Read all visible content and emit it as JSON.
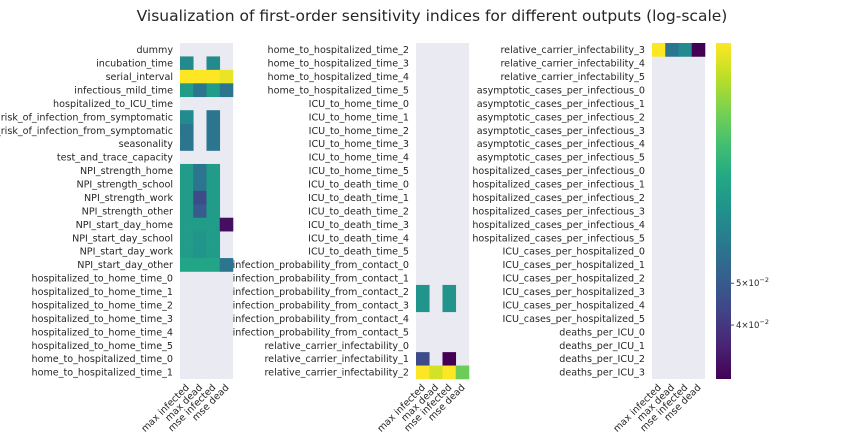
{
  "chart_data": [
    {
      "type": "heatmap",
      "panel": "left",
      "columns": [
        "max infected",
        "max dead",
        "mse infected",
        "mse dead"
      ],
      "rows": [
        "dummy",
        "incubation_time",
        "serial_interval",
        "infectious_mild_time",
        "hospitalized_to_ICU_time",
        "risk_of_infection_from_symptomatic",
        "max_risk_of_infection_from_symptomatic",
        "seasonality",
        "test_and_trace_capacity",
        "NPI_strength_home",
        "NPI_strength_school",
        "NPI_strength_work",
        "NPI_strength_other",
        "NPI_start_day_home",
        "NPI_start_day_school",
        "NPI_start_day_work",
        "NPI_start_day_other",
        "hospitalized_to_home_time_0",
        "hospitalized_to_home_time_1",
        "hospitalized_to_home_time_2",
        "hospitalized_to_home_time_3",
        "hospitalized_to_home_time_4",
        "hospitalized_to_home_time_5",
        "home_to_hospitalized_time_0",
        "home_to_hospitalized_time_1"
      ],
      "values": [
        [
          null,
          null,
          null,
          null
        ],
        [
          0.07,
          null,
          0.07,
          null
        ],
        [
          0.18,
          0.18,
          0.18,
          0.17
        ],
        [
          0.08,
          0.06,
          0.08,
          0.06
        ],
        [
          null,
          null,
          null,
          null
        ],
        [
          0.07,
          null,
          0.06,
          null
        ],
        [
          0.06,
          null,
          0.06,
          null
        ],
        [
          0.06,
          null,
          0.06,
          null
        ],
        [
          null,
          null,
          null,
          null
        ],
        [
          0.08,
          0.06,
          0.08,
          null
        ],
        [
          0.08,
          0.06,
          0.08,
          null
        ],
        [
          0.08,
          0.045,
          0.08,
          null
        ],
        [
          0.08,
          0.05,
          0.08,
          null
        ],
        [
          0.08,
          0.08,
          0.08,
          0.032
        ],
        [
          0.08,
          0.075,
          0.08,
          null
        ],
        [
          0.08,
          0.075,
          0.08,
          null
        ],
        [
          0.085,
          0.085,
          0.085,
          0.06
        ],
        [
          null,
          null,
          null,
          null
        ],
        [
          null,
          null,
          null,
          null
        ],
        [
          null,
          null,
          null,
          null
        ],
        [
          null,
          null,
          null,
          null
        ],
        [
          null,
          null,
          null,
          null
        ],
        [
          null,
          null,
          null,
          null
        ],
        [
          null,
          null,
          null,
          null
        ],
        [
          null,
          null,
          null,
          null
        ]
      ]
    },
    {
      "type": "heatmap",
      "panel": "middle",
      "columns": [
        "max infected",
        "max dead",
        "mse infected",
        "mse dead"
      ],
      "rows": [
        "home_to_hospitalized_time_2",
        "home_to_hospitalized_time_3",
        "home_to_hospitalized_time_4",
        "home_to_hospitalized_time_5",
        "ICU_to_home_time_0",
        "ICU_to_home_time_1",
        "ICU_to_home_time_2",
        "ICU_to_home_time_3",
        "ICU_to_home_time_4",
        "ICU_to_home_time_5",
        "ICU_to_death_time_0",
        "ICU_to_death_time_1",
        "ICU_to_death_time_2",
        "ICU_to_death_time_3",
        "ICU_to_death_time_4",
        "ICU_to_death_time_5",
        "infection_probability_from_contact_0",
        "infection_probability_from_contact_1",
        "infection_probability_from_contact_2",
        "infection_probability_from_contact_3",
        "infection_probability_from_contact_4",
        "infection_probability_from_contact_5",
        "relative_carrier_infectability_0",
        "relative_carrier_infectability_1",
        "relative_carrier_infectability_2"
      ],
      "values": [
        [
          null,
          null,
          null,
          null
        ],
        [
          null,
          null,
          null,
          null
        ],
        [
          null,
          null,
          null,
          null
        ],
        [
          null,
          null,
          null,
          null
        ],
        [
          null,
          null,
          null,
          null
        ],
        [
          null,
          null,
          null,
          null
        ],
        [
          null,
          null,
          null,
          null
        ],
        [
          null,
          null,
          null,
          null
        ],
        [
          null,
          null,
          null,
          null
        ],
        [
          null,
          null,
          null,
          null
        ],
        [
          null,
          null,
          null,
          null
        ],
        [
          null,
          null,
          null,
          null
        ],
        [
          null,
          null,
          null,
          null
        ],
        [
          null,
          null,
          null,
          null
        ],
        [
          null,
          null,
          null,
          null
        ],
        [
          null,
          null,
          null,
          null
        ],
        [
          null,
          null,
          null,
          null
        ],
        [
          null,
          null,
          null,
          null
        ],
        [
          0.075,
          null,
          0.075,
          null
        ],
        [
          0.075,
          null,
          0.075,
          null
        ],
        [
          null,
          null,
          null,
          null
        ],
        [
          null,
          null,
          null,
          null
        ],
        [
          null,
          null,
          null,
          null
        ],
        [
          0.045,
          null,
          0.03,
          null
        ],
        [
          0.18,
          0.16,
          0.18,
          0.12
        ]
      ]
    },
    {
      "type": "heatmap",
      "panel": "right",
      "columns": [
        "max infected",
        "max dead",
        "mse infected",
        "mse dead"
      ],
      "rows": [
        "relative_carrier_infectability_3",
        "relative_carrier_infectability_4",
        "relative_carrier_infectability_5",
        "asymptotic_cases_per_infectious_0",
        "asymptotic_cases_per_infectious_1",
        "asymptotic_cases_per_infectious_2",
        "asymptotic_cases_per_infectious_3",
        "asymptotic_cases_per_infectious_4",
        "asymptotic_cases_per_infectious_5",
        "hospitalized_cases_per_infectious_0",
        "hospitalized_cases_per_infectious_1",
        "hospitalized_cases_per_infectious_2",
        "hospitalized_cases_per_infectious_3",
        "hospitalized_cases_per_infectious_4",
        "hospitalized_cases_per_infectious_5",
        "ICU_cases_per_hospitalized_0",
        "ICU_cases_per_hospitalized_1",
        "ICU_cases_per_hospitalized_2",
        "ICU_cases_per_hospitalized_3",
        "ICU_cases_per_hospitalized_4",
        "ICU_cases_per_hospitalized_5",
        "deaths_per_ICU_0",
        "deaths_per_ICU_1",
        "deaths_per_ICU_2",
        "deaths_per_ICU_3"
      ],
      "values": [
        [
          0.18,
          0.06,
          0.07,
          0.03
        ],
        [
          null,
          null,
          null,
          null
        ],
        [
          null,
          null,
          null,
          null
        ],
        [
          null,
          null,
          null,
          null
        ],
        [
          null,
          null,
          null,
          null
        ],
        [
          null,
          null,
          null,
          null
        ],
        [
          null,
          null,
          null,
          null
        ],
        [
          null,
          null,
          null,
          null
        ],
        [
          null,
          null,
          null,
          null
        ],
        [
          null,
          null,
          null,
          null
        ],
        [
          null,
          null,
          null,
          null
        ],
        [
          null,
          null,
          null,
          null
        ],
        [
          null,
          null,
          null,
          null
        ],
        [
          null,
          null,
          null,
          null
        ],
        [
          null,
          null,
          null,
          null
        ],
        [
          null,
          null,
          null,
          null
        ],
        [
          null,
          null,
          null,
          null
        ],
        [
          null,
          null,
          null,
          null
        ],
        [
          null,
          null,
          null,
          null
        ],
        [
          null,
          null,
          null,
          null
        ],
        [
          null,
          null,
          null,
          null
        ],
        [
          null,
          null,
          null,
          null
        ],
        [
          null,
          null,
          null,
          null
        ],
        [
          null,
          null,
          null,
          null
        ],
        [
          null,
          null,
          null,
          null
        ]
      ]
    }
  ],
  "figure": {
    "title": "Visualization of first-order sensitivity indices for different outputs (log-scale)"
  },
  "colorbar": {
    "scale": "log",
    "colormap": "viridis",
    "vmin": 0.03,
    "vmax": 0.18,
    "ticks": [
      {
        "value": 0.05,
        "mantissa": "5",
        "base": "10",
        "exp": "−2"
      },
      {
        "value": 0.04,
        "mantissa": "4",
        "base": "10",
        "exp": "−2"
      }
    ]
  },
  "colors": {
    "missing_cell": "#eaeaf2",
    "text": "#262626"
  }
}
